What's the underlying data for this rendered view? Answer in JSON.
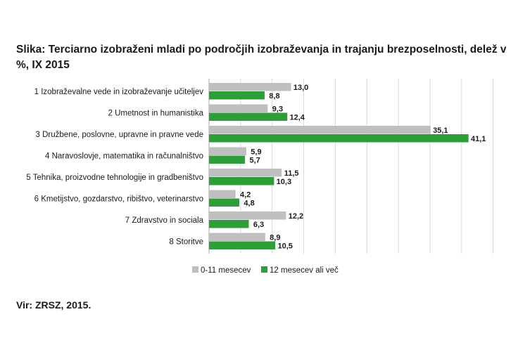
{
  "title": "Slika: Terciarno izobraženi mladi po področjih izobraževanja in trajanju brezposelnosti, delež v %, IX 2015",
  "source": "Vir: ZRSZ, 2015.",
  "chart_data": {
    "type": "bar",
    "orientation": "horizontal",
    "categories": [
      "1 Izobraževalne vede in izobraževanje učiteljev",
      "2 Umetnost in humanistika",
      "3 Družbene, poslovne, upravne in pravne vede",
      "4 Naravoslovje, matematika in računalništvo",
      "5 Tehnika, proizvodne tehnologije in gradbeništvo",
      "6 Kmetijstvo, gozdarstvo, ribištvo, veterinarstvo",
      "7 Zdravstvo in sociala",
      "8 Storitve"
    ],
    "series": [
      {
        "name": "0-11 mesecev",
        "color": "#bfbfbf",
        "values": [
          13.0,
          9.3,
          35.1,
          5.9,
          11.5,
          4.2,
          12.2,
          8.9
        ],
        "labels": [
          "13,0",
          "9,3",
          "35,1",
          "5,9",
          "11,5",
          "4,2",
          "12,2",
          "8,9"
        ]
      },
      {
        "name": "12 mesecev ali več",
        "color": "#2e9e3a",
        "values": [
          8.8,
          12.4,
          41.1,
          5.7,
          10.3,
          4.8,
          6.3,
          10.5
        ],
        "labels": [
          "8,8",
          "12,4",
          "41,1",
          "5,7",
          "10,3",
          "4,8",
          "6,3",
          "10,5"
        ]
      }
    ],
    "xlim": [
      0,
      45
    ],
    "grid": true,
    "legend_position": "bottom"
  }
}
